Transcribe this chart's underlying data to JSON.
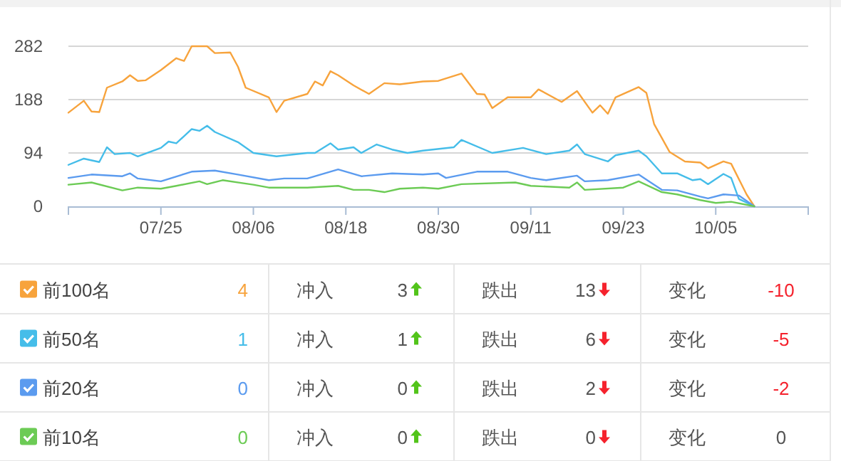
{
  "chart_data": {
    "type": "line",
    "xlim": [
      "--07-13",
      "--10-17"
    ],
    "xticks": [
      {
        "value": "--07-13",
        "label": null
      },
      {
        "value": "--07-25",
        "label": "07/25"
      },
      {
        "value": "--08-06",
        "label": "08/06"
      },
      {
        "value": "--08-18",
        "label": "08/18"
      },
      {
        "value": "--08-30",
        "label": "08/30"
      },
      {
        "value": "--09-11",
        "label": "09/11"
      },
      {
        "value": "--09-23",
        "label": "09/23"
      },
      {
        "value": "--10-05",
        "label": "10/05"
      },
      {
        "value": "--10-17",
        "label": null
      }
    ],
    "ylim": [
      0,
      282
    ],
    "yticks": [
      0,
      94,
      188,
      282
    ],
    "grid": "y",
    "legend": "bottom",
    "marker": "none",
    "line_style": "solid",
    "series": [
      {
        "name": "前100名",
        "color": "#f7a33c",
        "x": [
          "--07-13",
          "--07-15",
          "--07-16",
          "--07-17",
          "--07-18",
          "--07-20",
          "--07-21",
          "--07-22",
          "--07-23",
          "--07-25",
          "--07-27",
          "--07-28",
          "--07-29",
          "--07-31",
          "--08-01",
          "--08-03",
          "--08-04",
          "--08-05",
          "--08-08",
          "--08-09",
          "--08-10",
          "--08-13",
          "--08-14",
          "--08-15",
          "--08-16",
          "--08-17",
          "--08-19",
          "--08-21",
          "--08-23",
          "--08-25",
          "--08-28",
          "--08-30",
          "--09-02",
          "--09-04",
          "--09-05",
          "--09-06",
          "--09-08",
          "--09-11",
          "--09-12",
          "--09-15",
          "--09-17",
          "--09-19",
          "--09-20",
          "--09-21",
          "--09-22",
          "--09-25",
          "--09-26",
          "--09-27",
          "--09-29",
          "--10-01",
          "--10-03",
          "--10-04",
          "--10-06",
          "--10-07",
          "--10-09",
          "--10-10"
        ],
        "values": [
          165,
          186,
          167,
          166,
          209,
          220,
          231,
          221,
          222,
          240,
          261,
          256,
          282,
          282,
          270,
          271,
          246,
          209,
          192,
          166,
          186,
          198,
          220,
          213,
          238,
          231,
          213,
          198,
          217,
          215,
          220,
          221,
          234,
          198,
          197,
          173,
          192,
          192,
          206,
          184,
          203,
          165,
          178,
          163,
          192,
          210,
          200,
          145,
          96,
          79,
          77,
          67,
          79,
          75,
          21,
          0
        ]
      },
      {
        "name": "前50名",
        "color": "#45bde9",
        "x": [
          "--07-13",
          "--07-15",
          "--07-17",
          "--07-18",
          "--07-19",
          "--07-21",
          "--07-22",
          "--07-25",
          "--07-26",
          "--07-27",
          "--07-29",
          "--07-30",
          "--07-31",
          "--08-01",
          "--08-04",
          "--08-06",
          "--08-09",
          "--08-13",
          "--08-14",
          "--08-16",
          "--08-17",
          "--08-19",
          "--08-20",
          "--08-22",
          "--08-24",
          "--08-26",
          "--08-28",
          "--09-01",
          "--09-02",
          "--09-06",
          "--09-10",
          "--09-13",
          "--09-16",
          "--09-17",
          "--09-18",
          "--09-21",
          "--09-22",
          "--09-25",
          "--09-26",
          "--09-28",
          "--09-30",
          "--10-02",
          "--10-03",
          "--10-04",
          "--10-06",
          "--10-07",
          "--10-08",
          "--10-10"
        ],
        "values": [
          73,
          84,
          78,
          104,
          92,
          94,
          88,
          103,
          114,
          111,
          136,
          133,
          142,
          131,
          113,
          94,
          88,
          94,
          94,
          111,
          100,
          104,
          94,
          109,
          100,
          94,
          98,
          104,
          117,
          94,
          103,
          92,
          98,
          109,
          92,
          79,
          90,
          98,
          88,
          58,
          58,
          46,
          48,
          39,
          57,
          50,
          13,
          0
        ]
      },
      {
        "name": "前20名",
        "color": "#5b9bef",
        "x": [
          "--07-13",
          "--07-16",
          "--07-20",
          "--07-21",
          "--07-22",
          "--07-25",
          "--07-29",
          "--08-01",
          "--08-04",
          "--08-08",
          "--08-10",
          "--08-13",
          "--08-17",
          "--08-20",
          "--08-24",
          "--08-28",
          "--08-30",
          "--08-31",
          "--09-04",
          "--09-08",
          "--09-11",
          "--09-13",
          "--09-17",
          "--09-18",
          "--09-21",
          "--09-25",
          "--09-28",
          "--09-30",
          "--10-03",
          "--10-04",
          "--10-06",
          "--10-08",
          "--10-10"
        ],
        "values": [
          50,
          56,
          53,
          58,
          49,
          44,
          61,
          63,
          56,
          46,
          49,
          49,
          65,
          53,
          58,
          56,
          58,
          50,
          61,
          61,
          50,
          46,
          54,
          44,
          46,
          56,
          29,
          28,
          17,
          14,
          21,
          19,
          0
        ]
      },
      {
        "name": "前10名",
        "color": "#6ccb55",
        "x": [
          "--07-13",
          "--07-16",
          "--07-20",
          "--07-22",
          "--07-25",
          "--07-27",
          "--07-30",
          "--07-31",
          "--08-02",
          "--08-06",
          "--08-08",
          "--08-13",
          "--08-17",
          "--08-19",
          "--08-21",
          "--08-23",
          "--08-25",
          "--08-28",
          "--08-30",
          "--09-02",
          "--09-09",
          "--09-11",
          "--09-16",
          "--09-17",
          "--09-18",
          "--09-23",
          "--09-25",
          "--09-28",
          "--09-30",
          "--10-03",
          "--10-05",
          "--10-07",
          "--10-10"
        ],
        "values": [
          38,
          42,
          28,
          33,
          31,
          36,
          44,
          39,
          46,
          38,
          33,
          33,
          36,
          29,
          29,
          25,
          31,
          33,
          31,
          39,
          42,
          36,
          33,
          42,
          29,
          33,
          44,
          25,
          21,
          11,
          6,
          8,
          0
        ]
      }
    ],
    "annotations": [
      "4",
      "冲入",
      "3",
      "跌出",
      "13",
      "变化",
      "-10",
      "1",
      "冲入",
      "1",
      "跌出",
      "6",
      "变化",
      "-5",
      "0",
      "冲入",
      "0",
      "跌出",
      "2",
      "变化",
      "-2",
      "0",
      "冲入",
      "0",
      "跌出",
      "0",
      "变化",
      "0"
    ]
  }
}
